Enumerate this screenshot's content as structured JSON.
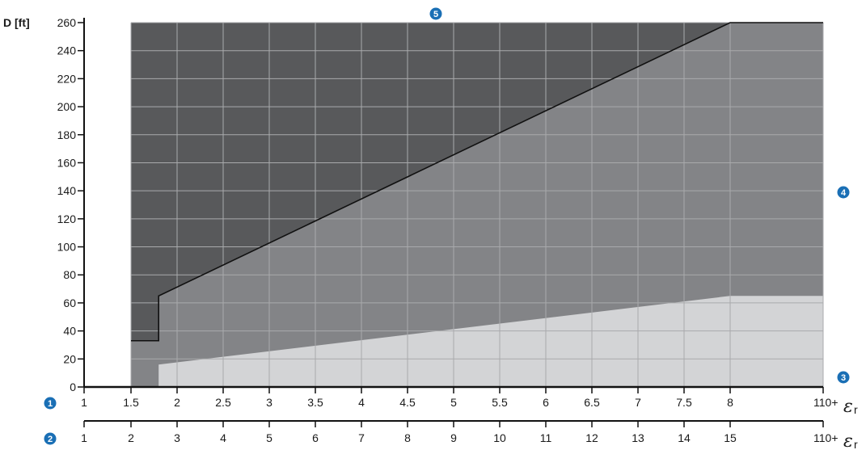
{
  "chart_data": {
    "type": "area",
    "ylabel": "D [ft]",
    "ylim": [
      0,
      260
    ],
    "y_ticks": [
      "0",
      "20",
      "40",
      "60",
      "80",
      "100",
      "120",
      "140",
      "160",
      "180",
      "200",
      "220",
      "240",
      "260"
    ],
    "x_axis_1": {
      "ticks": [
        "1",
        "1.5",
        "2",
        "2.5",
        "3",
        "3.5",
        "4",
        "4.5",
        "5",
        "5.5",
        "6",
        "6.5",
        "7",
        "7.5",
        "8",
        "110+"
      ],
      "label_symbol": "ε",
      "label_sub": "r"
    },
    "x_axis_2": {
      "ticks": [
        "1",
        "2",
        "3",
        "4",
        "5",
        "6",
        "7",
        "8",
        "9",
        "10",
        "11",
        "12",
        "13",
        "14",
        "15",
        "110+"
      ],
      "label_symbol": "ε",
      "label_sub": "r"
    },
    "grid": true,
    "regions": {
      "upper_boundary": [
        {
          "x": 1.5,
          "y": 33
        },
        {
          "x": 1.8,
          "y": 33
        },
        {
          "x": 1.8,
          "y": 65
        },
        {
          "x": 8,
          "y": 260
        },
        {
          "x": 110,
          "y": 260
        }
      ],
      "lower_boundary": [
        {
          "x": 1.8,
          "y": 0
        },
        {
          "x": 1.8,
          "y": 16
        },
        {
          "x": 8,
          "y": 65
        },
        {
          "x": 110,
          "y": 65
        }
      ]
    },
    "markers": [
      "1",
      "2",
      "3",
      "4",
      "5"
    ],
    "colors": {
      "dark_region": "#58595b",
      "mid_region": "#838487",
      "light_region": "#d3d4d6",
      "grid": "#a9aaac",
      "marker": "#1a6fb5"
    }
  }
}
